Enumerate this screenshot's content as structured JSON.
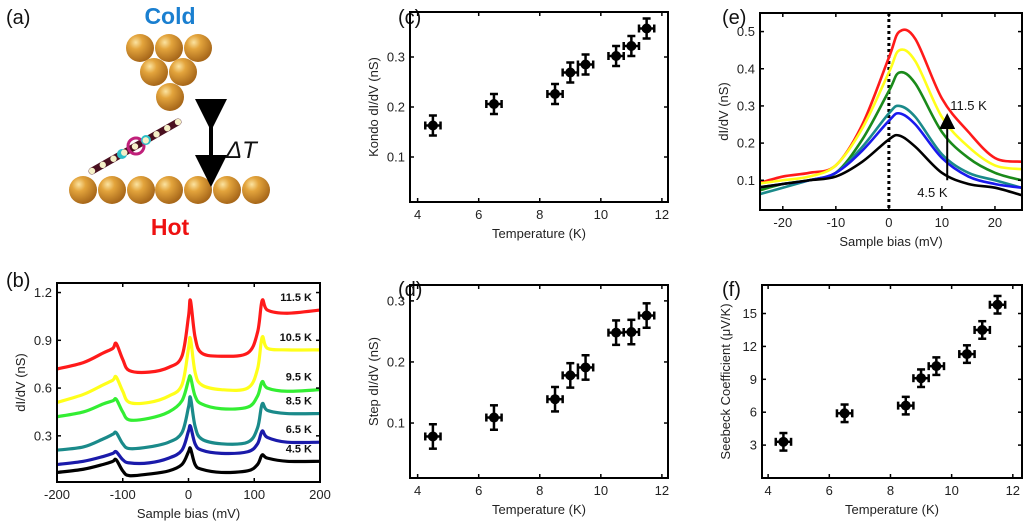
{
  "panel_a": {
    "label": "(a)",
    "cold_label": "Cold",
    "hot_label": "Hot",
    "delta_label": "ΔT",
    "colors": {
      "cold": "#1a7fd0",
      "hot": "#ee1111",
      "atom": "#d4962a"
    }
  },
  "chart_data": [
    {
      "id": "b",
      "panel_label": "(b)",
      "type": "line",
      "xlabel": "Sample bias (mV)",
      "ylabel": "dI/dV (nS)",
      "xlim": [
        -200,
        200
      ],
      "ylim": [
        0.01,
        1.26
      ],
      "xticks": [
        -200,
        -100,
        0,
        100,
        200
      ],
      "yticks": [
        0.3,
        0.6,
        0.9,
        1.2
      ],
      "x": [
        -200,
        -160,
        -130,
        -115,
        -110,
        -100,
        -90,
        -60,
        -30,
        -10,
        0,
        3,
        10,
        20,
        50,
        90,
        105,
        112,
        120,
        150,
        200
      ],
      "series": [
        {
          "name": "11.5 K",
          "color": "#ff1a1a",
          "values": [
            0.72,
            0.76,
            0.82,
            0.85,
            0.88,
            0.78,
            0.71,
            0.7,
            0.73,
            0.8,
            1.05,
            1.15,
            0.92,
            0.82,
            0.8,
            0.82,
            0.95,
            1.15,
            1.09,
            1.07,
            1.09
          ]
        },
        {
          "name": "10.5 K",
          "color": "#ffff1a",
          "values": [
            0.51,
            0.56,
            0.62,
            0.65,
            0.67,
            0.58,
            0.51,
            0.51,
            0.55,
            0.62,
            0.85,
            0.91,
            0.7,
            0.62,
            0.59,
            0.6,
            0.72,
            0.92,
            0.85,
            0.84,
            0.84
          ]
        },
        {
          "name": "9.5 K",
          "color": "#33ee33",
          "values": [
            0.42,
            0.45,
            0.5,
            0.52,
            0.53,
            0.45,
            0.4,
            0.41,
            0.45,
            0.52,
            0.65,
            0.67,
            0.55,
            0.5,
            0.47,
            0.48,
            0.55,
            0.64,
            0.6,
            0.58,
            0.59
          ]
        },
        {
          "name": "8.5 K",
          "color": "#1a8a8a",
          "values": [
            0.21,
            0.23,
            0.28,
            0.31,
            0.32,
            0.25,
            0.22,
            0.23,
            0.26,
            0.32,
            0.48,
            0.54,
            0.36,
            0.28,
            0.25,
            0.26,
            0.35,
            0.5,
            0.46,
            0.44,
            0.44
          ]
        },
        {
          "name": "6.5 K",
          "color": "#1a1aaa",
          "values": [
            0.12,
            0.14,
            0.17,
            0.19,
            0.2,
            0.15,
            0.13,
            0.13,
            0.16,
            0.21,
            0.33,
            0.36,
            0.25,
            0.21,
            0.19,
            0.2,
            0.25,
            0.33,
            0.29,
            0.26,
            0.26
          ]
        },
        {
          "name": "4.5 K",
          "color": "#000000",
          "values": [
            0.07,
            0.09,
            0.12,
            0.14,
            0.15,
            0.08,
            0.05,
            0.06,
            0.08,
            0.12,
            0.2,
            0.22,
            0.12,
            0.09,
            0.07,
            0.08,
            0.12,
            0.18,
            0.16,
            0.14,
            0.14
          ]
        }
      ]
    },
    {
      "id": "c",
      "panel_label": "(c)",
      "type": "scatter",
      "xlabel": "Temperature (K)",
      "ylabel": "Kondo dI/dV (nS)",
      "xlim": [
        3.75,
        12.2
      ],
      "ylim": [
        0.01,
        0.39
      ],
      "xticks": [
        4,
        6,
        8,
        10,
        12
      ],
      "yticks": [
        0.1,
        0.2,
        0.3
      ],
      "x": [
        4.5,
        6.5,
        8.5,
        9.0,
        9.5,
        10.5,
        11.0,
        11.5
      ],
      "y": [
        0.163,
        0.206,
        0.226,
        0.269,
        0.285,
        0.302,
        0.322,
        0.357
      ],
      "yerr": 0.02,
      "xerr": 0.25
    },
    {
      "id": "d",
      "panel_label": "(d)",
      "type": "scatter",
      "xlabel": "Temperature (K)",
      "ylabel": "Step dI/dV (nS)",
      "xlim": [
        3.75,
        12.2
      ],
      "ylim": [
        0.01,
        0.326
      ],
      "xticks": [
        4,
        6,
        8,
        10,
        12
      ],
      "yticks": [
        0.1,
        0.2,
        0.3
      ],
      "x": [
        4.5,
        6.5,
        8.5,
        9.0,
        9.5,
        10.5,
        11.0,
        11.5
      ],
      "y": [
        0.078,
        0.109,
        0.139,
        0.178,
        0.191,
        0.248,
        0.249,
        0.276
      ],
      "yerr": 0.02,
      "xerr": 0.25
    },
    {
      "id": "e",
      "panel_label": "(e)",
      "type": "line",
      "xlabel": "Sample bias (mV)",
      "ylabel": "dI/dV (nS)",
      "xlim": [
        -24.3,
        25.1
      ],
      "ylim": [
        0.02,
        0.55
      ],
      "xticks": [
        -20,
        -10,
        0,
        10,
        20
      ],
      "yticks": [
        0.1,
        0.2,
        0.3,
        0.4,
        0.5
      ],
      "x": [
        -25,
        -20,
        -15,
        -10,
        -5,
        0,
        2,
        5,
        10,
        15,
        20,
        25
      ],
      "series": [
        {
          "color": "#ff1a1a",
          "values": [
            0.09,
            0.11,
            0.12,
            0.14,
            0.25,
            0.43,
            0.5,
            0.48,
            0.32,
            0.23,
            0.16,
            0.15
          ]
        },
        {
          "color": "#ffff1a",
          "values": [
            0.09,
            0.1,
            0.11,
            0.14,
            0.24,
            0.39,
            0.45,
            0.42,
            0.27,
            0.19,
            0.14,
            0.13
          ]
        },
        {
          "color": "#1a8a1a",
          "values": [
            0.07,
            0.09,
            0.1,
            0.12,
            0.21,
            0.34,
            0.39,
            0.36,
            0.23,
            0.16,
            0.12,
            0.1
          ]
        },
        {
          "color": "#1a8a8a",
          "values": [
            0.06,
            0.08,
            0.1,
            0.12,
            0.19,
            0.28,
            0.3,
            0.27,
            0.17,
            0.12,
            0.1,
            0.08
          ]
        },
        {
          "color": "#1a1aee",
          "values": [
            0.08,
            0.09,
            0.1,
            0.12,
            0.18,
            0.26,
            0.28,
            0.25,
            0.16,
            0.11,
            0.09,
            0.08
          ]
        },
        {
          "color": "#000000",
          "values": [
            0.08,
            0.09,
            0.1,
            0.11,
            0.15,
            0.21,
            0.22,
            0.19,
            0.12,
            0.09,
            0.08,
            0.06
          ]
        }
      ],
      "annotations": {
        "high": "11.5 K",
        "low": "4.5 K",
        "arrow_x": 11,
        "arrow_from": 0.1,
        "arrow_to": 0.27,
        "vline_x": 0
      }
    },
    {
      "id": "f",
      "panel_label": "(f)",
      "type": "scatter",
      "xlabel": "Temperature (K)",
      "ylabel": "Seebeck Coefficient (μV/K)",
      "xlim": [
        3.8,
        12.3
      ],
      "ylim": [
        0,
        17.6
      ],
      "xticks": [
        4,
        6,
        8,
        10,
        12
      ],
      "yticks": [
        3,
        6,
        9,
        12,
        15
      ],
      "x": [
        4.5,
        6.5,
        8.5,
        9.0,
        9.5,
        10.5,
        11.0,
        11.5
      ],
      "y": [
        3.3,
        5.9,
        6.6,
        9.1,
        10.2,
        11.3,
        13.5,
        15.8
      ],
      "yerr": 0.8,
      "xerr": 0.25
    }
  ]
}
